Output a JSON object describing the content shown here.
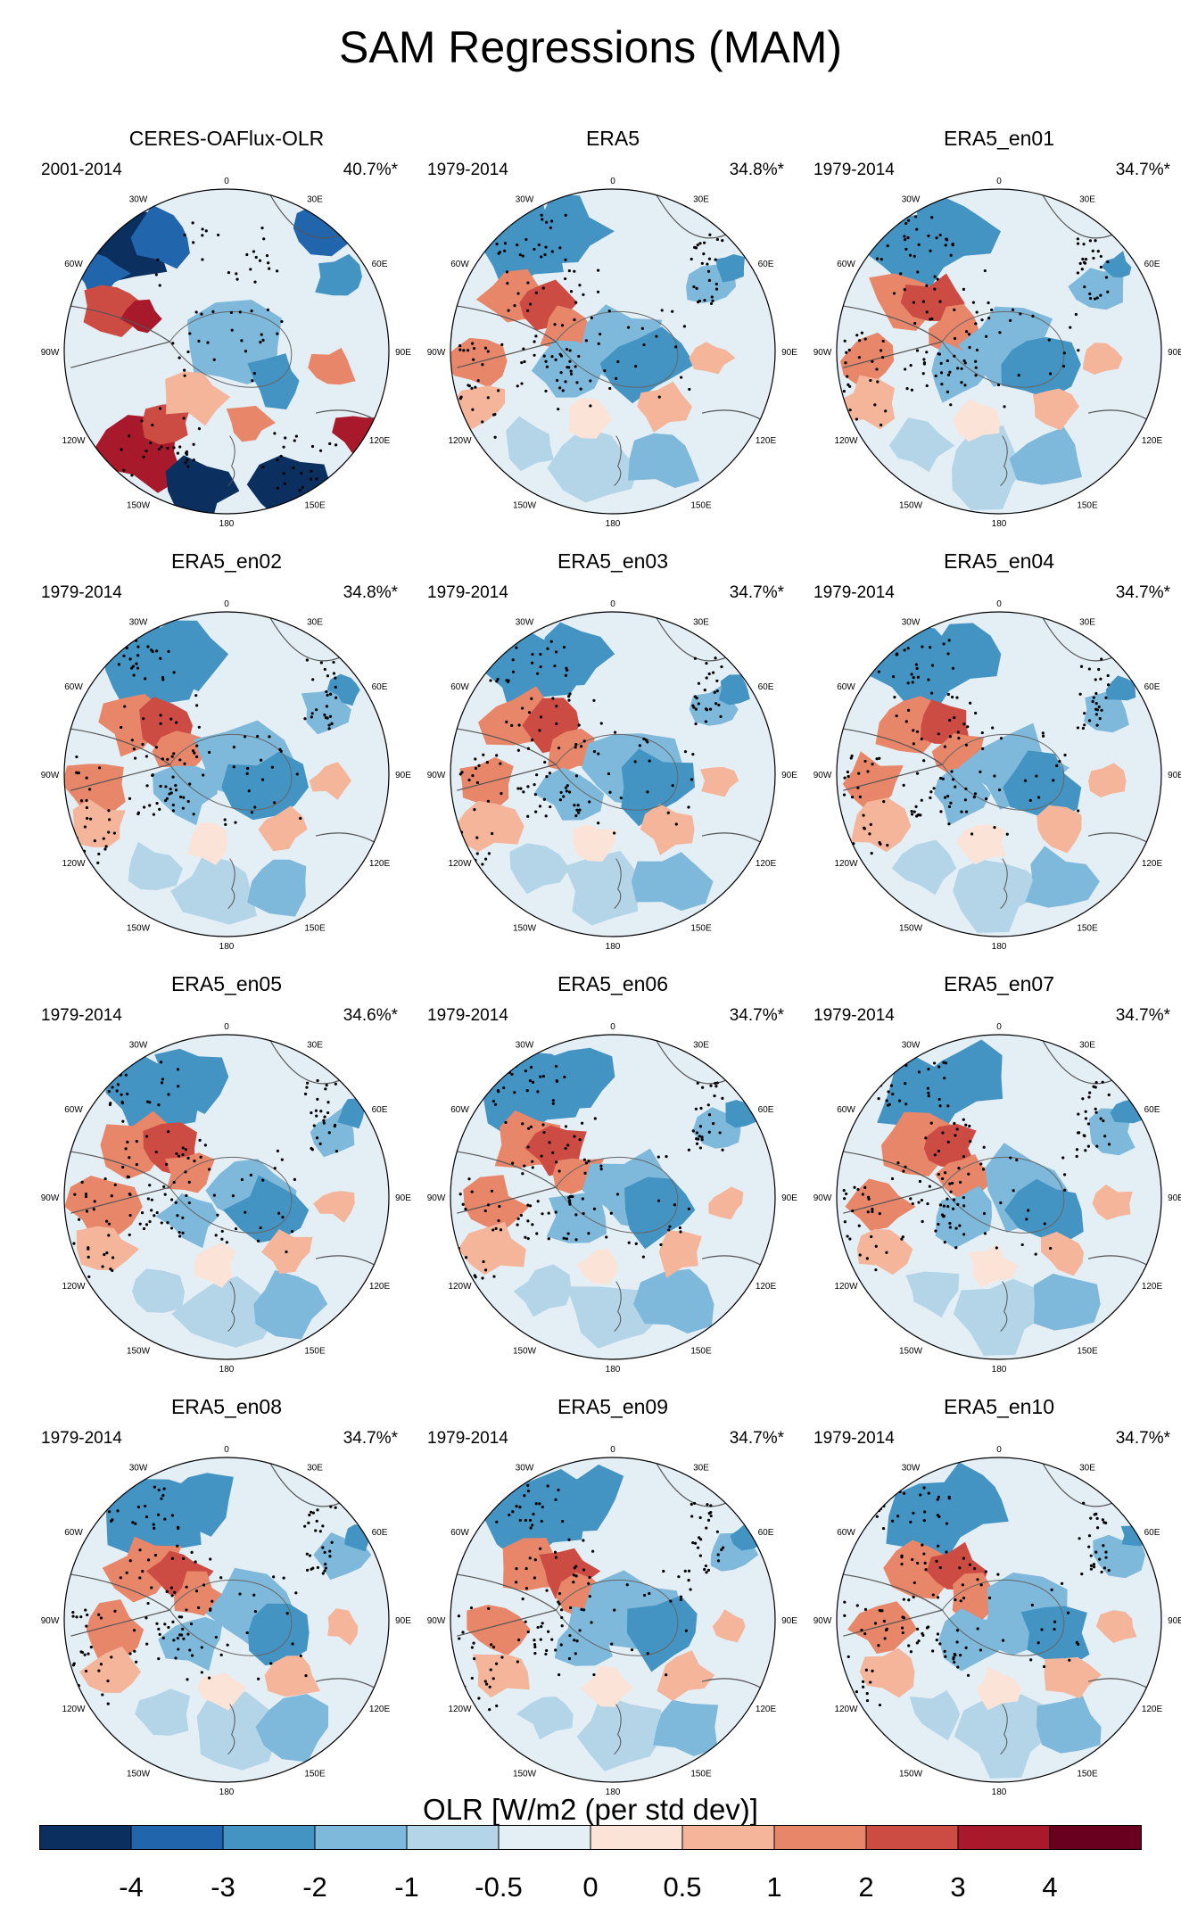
{
  "title": "SAM Regressions (MAM)",
  "chart_data": {
    "type": "polar-map-panels",
    "projection": "Southern Hemisphere polar stereographic",
    "variable": "OLR",
    "units": "W/m2 (per std dev)",
    "stippling": "statistical significance",
    "panels": [
      {
        "name": "CERES-OAFlux-OLR",
        "years": "2001-2014",
        "variance_explained": "40.7%*"
      },
      {
        "name": "ERA5",
        "years": "1979-2014",
        "variance_explained": "34.8%*"
      },
      {
        "name": "ERA5_en01",
        "years": "1979-2014",
        "variance_explained": "34.7%*"
      },
      {
        "name": "ERA5_en02",
        "years": "1979-2014",
        "variance_explained": "34.8%*"
      },
      {
        "name": "ERA5_en03",
        "years": "1979-2014",
        "variance_explained": "34.7%*"
      },
      {
        "name": "ERA5_en04",
        "years": "1979-2014",
        "variance_explained": "34.7%*"
      },
      {
        "name": "ERA5_en05",
        "years": "1979-2014",
        "variance_explained": "34.6%*"
      },
      {
        "name": "ERA5_en06",
        "years": "1979-2014",
        "variance_explained": "34.7%*"
      },
      {
        "name": "ERA5_en07",
        "years": "1979-2014",
        "variance_explained": "34.7%*"
      },
      {
        "name": "ERA5_en08",
        "years": "1979-2014",
        "variance_explained": "34.7%*"
      },
      {
        "name": "ERA5_en09",
        "years": "1979-2014",
        "variance_explained": "34.7%*"
      },
      {
        "name": "ERA5_en10",
        "years": "1979-2014",
        "variance_explained": "34.7%*"
      }
    ],
    "longitude_labels": [
      "0",
      "30E",
      "60E",
      "90E",
      "120E",
      "150E",
      "180",
      "150W",
      "120W",
      "90W",
      "60W",
      "30W"
    ],
    "colorbar": {
      "title": "OLR [W/m2 (per std dev)]",
      "tick_labels": [
        "-4",
        "-3",
        "-2",
        "-1",
        "-0.5",
        "0",
        "0.5",
        "1",
        "2",
        "3",
        "4"
      ],
      "colors": [
        "#0b2f5e",
        "#2166ac",
        "#4393c3",
        "#7eb8da",
        "#b4d5e8",
        "#e4eef5",
        "#fbe3d8",
        "#f5b59b",
        "#e8866a",
        "#cc4c43",
        "#a8192b",
        "#6a0020"
      ]
    }
  }
}
